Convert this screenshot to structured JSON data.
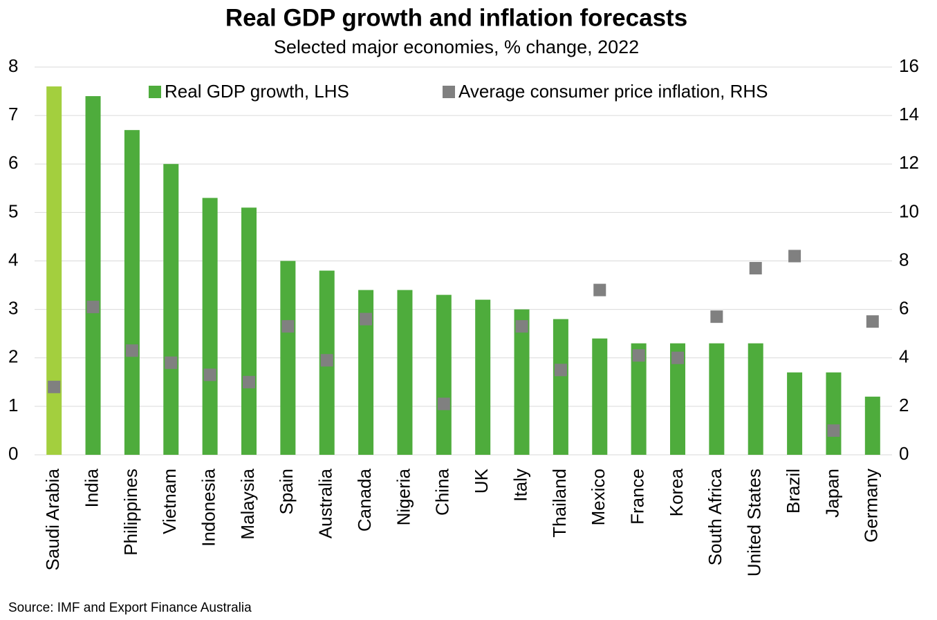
{
  "chart_data": {
    "type": "bar",
    "title": "Real GDP growth and inflation forecasts",
    "subtitle": "Selected major economies, % change, 2022",
    "source": "Source: IMF and Export Finance Australia",
    "categories": [
      "Saudi Arabia",
      "India",
      "Philippines",
      "Vietnam",
      "Indonesia",
      "Malaysia",
      "Spain",
      "Australia",
      "Canada",
      "Nigeria",
      "China",
      "UK",
      "Italy",
      "Thailand",
      "Mexico",
      "France",
      "Korea",
      "South Africa",
      "United States",
      "Brazil",
      "Japan",
      "Germany"
    ],
    "series": [
      {
        "name": "Real GDP growth, LHS",
        "color": "#4eac3c",
        "colors": [
          "#a3cf3e",
          "#4eac3c",
          "#4eac3c",
          "#4eac3c",
          "#4eac3c",
          "#4eac3c",
          "#4eac3c",
          "#4eac3c",
          "#4eac3c",
          "#4eac3c",
          "#4eac3c",
          "#4eac3c",
          "#4eac3c",
          "#4eac3c",
          "#4eac3c",
          "#4eac3c",
          "#4eac3c",
          "#4eac3c",
          "#4eac3c",
          "#4eac3c",
          "#4eac3c",
          "#4eac3c"
        ],
        "values": [
          7.6,
          7.4,
          6.7,
          6.0,
          5.3,
          5.1,
          4.0,
          3.8,
          3.4,
          3.4,
          3.3,
          3.2,
          3.0,
          2.8,
          2.4,
          2.3,
          2.3,
          2.3,
          2.3,
          1.7,
          1.7,
          1.2
        ]
      },
      {
        "name": "Average consumer price inflation, RHS",
        "color": "#808080",
        "axis": "y2",
        "marker": "square",
        "values": [
          2.8,
          6.1,
          4.3,
          3.8,
          3.3,
          3.0,
          5.3,
          3.9,
          5.6,
          null,
          2.1,
          null,
          5.3,
          3.5,
          6.8,
          4.1,
          4.0,
          5.7,
          7.7,
          8.2,
          1.0,
          5.5
        ]
      }
    ],
    "ylim": [
      0,
      8
    ],
    "yticks": [
      0,
      1,
      2,
      3,
      4,
      5,
      6,
      7,
      8
    ],
    "y2lim": [
      0,
      16
    ],
    "y2ticks": [
      0,
      2,
      4,
      6,
      8,
      10,
      12,
      14,
      16
    ],
    "grid": true
  }
}
